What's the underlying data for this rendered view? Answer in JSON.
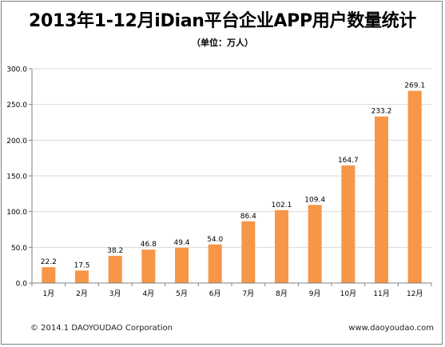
{
  "header": {
    "title": "2013年1-12月iDian平台企业APP用户数量统计",
    "subtitle": "（单位：万人）"
  },
  "footer": {
    "copyright": "© 2014.1 DAOYOUDAO Corporation",
    "website": "www.daoyoudao.com"
  },
  "chart_data": {
    "type": "bar",
    "title": "2013年1-12月iDian平台企业APP用户数量统计",
    "subtitle": "（单位：万人）",
    "categories": [
      "1月",
      "2月",
      "3月",
      "4月",
      "5月",
      "6月",
      "7月",
      "8月",
      "9月",
      "10月",
      "11月",
      "12月"
    ],
    "values": [
      22.2,
      17.5,
      38.2,
      46.8,
      49.4,
      54.0,
      86.4,
      102.1,
      109.4,
      164.7,
      233.2,
      269.1
    ],
    "value_labels": [
      "22.2",
      "17.5",
      "38.2",
      "46.8",
      "49.4",
      "54.0",
      "86.4",
      "102.1",
      "109.4",
      "164.7",
      "233.2",
      "269.1"
    ],
    "yticks": [
      "0.0",
      "50.0",
      "100.0",
      "150.0",
      "200.0",
      "250.0",
      "300.0"
    ],
    "ylim": [
      0,
      300
    ],
    "grid": true,
    "bar_color": "#f79646",
    "grid_color": "#d9d9d9",
    "axis_color": "#808080"
  }
}
